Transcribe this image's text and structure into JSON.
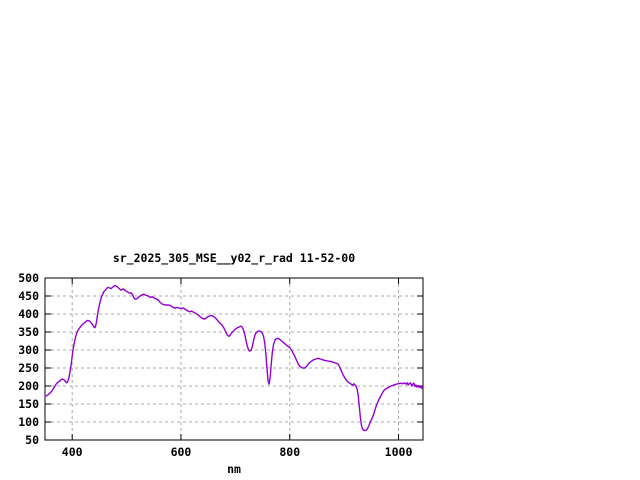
{
  "window": {
    "background": "#ffffff"
  },
  "chart_data": {
    "type": "line",
    "title": "sr_2025_305_MSE__y02_r_rad 11-52-00",
    "xlabel": "nm",
    "ylabel": "",
    "xlim": [
      350,
      1045
    ],
    "ylim": [
      50,
      500
    ],
    "x_ticks": [
      400,
      600,
      800,
      1000
    ],
    "y_ticks": [
      50,
      100,
      150,
      200,
      250,
      300,
      350,
      400,
      450,
      500
    ],
    "grid": true,
    "legend": "none",
    "frame_color": "#000000",
    "grid_color": "#a8a8a8",
    "series": [
      {
        "name": "sr_2025_305_MSE__y02_r_rad",
        "color": "#9400d3",
        "points": [
          [
            350,
            172
          ],
          [
            353,
            173
          ],
          [
            356,
            176
          ],
          [
            359,
            180
          ],
          [
            362,
            185
          ],
          [
            365,
            192
          ],
          [
            368,
            199
          ],
          [
            371,
            206
          ],
          [
            374,
            211
          ],
          [
            377,
            214
          ],
          [
            380,
            218
          ],
          [
            383,
            219
          ],
          [
            386,
            216
          ],
          [
            388,
            211
          ],
          [
            390,
            209
          ],
          [
            392,
            213
          ],
          [
            394,
            222
          ],
          [
            396,
            240
          ],
          [
            398,
            258
          ],
          [
            400,
            283
          ],
          [
            402,
            305
          ],
          [
            404,
            322
          ],
          [
            406,
            335
          ],
          [
            408,
            345
          ],
          [
            410,
            353
          ],
          [
            413,
            360
          ],
          [
            416,
            366
          ],
          [
            419,
            371
          ],
          [
            422,
            375
          ],
          [
            425,
            379
          ],
          [
            428,
            382
          ],
          [
            431,
            381
          ],
          [
            434,
            377
          ],
          [
            437,
            372
          ],
          [
            440,
            364
          ],
          [
            442,
            362
          ],
          [
            444,
            372
          ],
          [
            446,
            392
          ],
          [
            448,
            411
          ],
          [
            450,
            425
          ],
          [
            452,
            438
          ],
          [
            454,
            448
          ],
          [
            456,
            455
          ],
          [
            458,
            461
          ],
          [
            460,
            465
          ],
          [
            462,
            468
          ],
          [
            464,
            472
          ],
          [
            466,
            474
          ],
          [
            468,
            473
          ],
          [
            470,
            471
          ],
          [
            472,
            471
          ],
          [
            474,
            474
          ],
          [
            476,
            476
          ],
          [
            478,
            479
          ],
          [
            480,
            478
          ],
          [
            482,
            477
          ],
          [
            484,
            474
          ],
          [
            486,
            471
          ],
          [
            488,
            468
          ],
          [
            490,
            466
          ],
          [
            492,
            468
          ],
          [
            494,
            470
          ],
          [
            496,
            467
          ],
          [
            498,
            465
          ],
          [
            500,
            463
          ],
          [
            502,
            461
          ],
          [
            504,
            459
          ],
          [
            506,
            458
          ],
          [
            508,
            459
          ],
          [
            510,
            456
          ],
          [
            512,
            450
          ],
          [
            514,
            444
          ],
          [
            516,
            441
          ],
          [
            518,
            442
          ],
          [
            520,
            444
          ],
          [
            523,
            448
          ],
          [
            526,
            451
          ],
          [
            529,
            454
          ],
          [
            532,
            455
          ],
          [
            535,
            452
          ],
          [
            538,
            451
          ],
          [
            541,
            448
          ],
          [
            544,
            446
          ],
          [
            547,
            448
          ],
          [
            550,
            445
          ],
          [
            553,
            443
          ],
          [
            556,
            441
          ],
          [
            559,
            437
          ],
          [
            562,
            432
          ],
          [
            565,
            428
          ],
          [
            568,
            426
          ],
          [
            571,
            425
          ],
          [
            574,
            425
          ],
          [
            577,
            425
          ],
          [
            580,
            424
          ],
          [
            583,
            421
          ],
          [
            586,
            418
          ],
          [
            589,
            416
          ],
          [
            592,
            418
          ],
          [
            595,
            417
          ],
          [
            598,
            416
          ],
          [
            601,
            415
          ],
          [
            604,
            417
          ],
          [
            607,
            414
          ],
          [
            610,
            411
          ],
          [
            613,
            408
          ],
          [
            616,
            406
          ],
          [
            619,
            408
          ],
          [
            622,
            406
          ],
          [
            625,
            403
          ],
          [
            628,
            401
          ],
          [
            631,
            398
          ],
          [
            634,
            394
          ],
          [
            637,
            390
          ],
          [
            640,
            387
          ],
          [
            643,
            386
          ],
          [
            646,
            388
          ],
          [
            649,
            392
          ],
          [
            652,
            394
          ],
          [
            655,
            396
          ],
          [
            658,
            395
          ],
          [
            661,
            392
          ],
          [
            664,
            388
          ],
          [
            667,
            383
          ],
          [
            670,
            377
          ],
          [
            673,
            373
          ],
          [
            676,
            368
          ],
          [
            679,
            361
          ],
          [
            682,
            351
          ],
          [
            685,
            342
          ],
          [
            688,
            338
          ],
          [
            690,
            340
          ],
          [
            692,
            345
          ],
          [
            695,
            350
          ],
          [
            698,
            355
          ],
          [
            701,
            359
          ],
          [
            704,
            362
          ],
          [
            707,
            364
          ],
          [
            710,
            366
          ],
          [
            712,
            365
          ],
          [
            714,
            359
          ],
          [
            716,
            350
          ],
          [
            718,
            339
          ],
          [
            720,
            324
          ],
          [
            722,
            311
          ],
          [
            724,
            301
          ],
          [
            726,
            297
          ],
          [
            728,
            298
          ],
          [
            730,
            303
          ],
          [
            732,
            316
          ],
          [
            734,
            331
          ],
          [
            736,
            341
          ],
          [
            738,
            347
          ],
          [
            740,
            350
          ],
          [
            742,
            352
          ],
          [
            744,
            353
          ],
          [
            746,
            352
          ],
          [
            748,
            350
          ],
          [
            750,
            345
          ],
          [
            752,
            337
          ],
          [
            754,
            320
          ],
          [
            756,
            292
          ],
          [
            758,
            252
          ],
          [
            760,
            215
          ],
          [
            762,
            205
          ],
          [
            764,
            226
          ],
          [
            766,
            263
          ],
          [
            768,
            293
          ],
          [
            770,
            313
          ],
          [
            772,
            324
          ],
          [
            774,
            330
          ],
          [
            776,
            332
          ],
          [
            778,
            332
          ],
          [
            780,
            331
          ],
          [
            782,
            329
          ],
          [
            784,
            327
          ],
          [
            786,
            324
          ],
          [
            788,
            321
          ],
          [
            790,
            319
          ],
          [
            792,
            316
          ],
          [
            794,
            313
          ],
          [
            796,
            311
          ],
          [
            798,
            309
          ],
          [
            800,
            307
          ],
          [
            802,
            303
          ],
          [
            804,
            298
          ],
          [
            806,
            292
          ],
          [
            808,
            287
          ],
          [
            810,
            280
          ],
          [
            812,
            273
          ],
          [
            814,
            266
          ],
          [
            816,
            260
          ],
          [
            818,
            256
          ],
          [
            820,
            253
          ],
          [
            822,
            251
          ],
          [
            824,
            250
          ],
          [
            826,
            250
          ],
          [
            828,
            250
          ],
          [
            830,
            253
          ],
          [
            832,
            257
          ],
          [
            834,
            261
          ],
          [
            836,
            264
          ],
          [
            838,
            267
          ],
          [
            840,
            269
          ],
          [
            842,
            271
          ],
          [
            844,
            273
          ],
          [
            848,
            275
          ],
          [
            852,
            277
          ],
          [
            856,
            275
          ],
          [
            860,
            273
          ],
          [
            864,
            271
          ],
          [
            868,
            270
          ],
          [
            872,
            269
          ],
          [
            876,
            268
          ],
          [
            880,
            266
          ],
          [
            884,
            264
          ],
          [
            888,
            262
          ],
          [
            890,
            258
          ],
          [
            892,
            252
          ],
          [
            894,
            245
          ],
          [
            896,
            238
          ],
          [
            898,
            231
          ],
          [
            900,
            226
          ],
          [
            902,
            221
          ],
          [
            904,
            217
          ],
          [
            906,
            213
          ],
          [
            908,
            210
          ],
          [
            910,
            208
          ],
          [
            912,
            206
          ],
          [
            914,
            204
          ],
          [
            916,
            202
          ],
          [
            918,
            206
          ],
          [
            920,
            203
          ],
          [
            922,
            199
          ],
          [
            924,
            191
          ],
          [
            926,
            171
          ],
          [
            928,
            140
          ],
          [
            930,
            110
          ],
          [
            932,
            90
          ],
          [
            934,
            80
          ],
          [
            936,
            77
          ],
          [
            938,
            76
          ],
          [
            940,
            77
          ],
          [
            942,
            80
          ],
          [
            944,
            85
          ],
          [
            946,
            92
          ],
          [
            948,
            100
          ],
          [
            950,
            106
          ],
          [
            952,
            112
          ],
          [
            954,
            120
          ],
          [
            956,
            130
          ],
          [
            958,
            140
          ],
          [
            960,
            149
          ],
          [
            962,
            156
          ],
          [
            964,
            162
          ],
          [
            966,
            168
          ],
          [
            968,
            174
          ],
          [
            970,
            180
          ],
          [
            972,
            185
          ],
          [
            974,
            189
          ],
          [
            976,
            191
          ],
          [
            978,
            193
          ],
          [
            980,
            195
          ],
          [
            982,
            196
          ],
          [
            984,
            198
          ],
          [
            986,
            200
          ],
          [
            988,
            201
          ],
          [
            990,
            202
          ],
          [
            993,
            204
          ],
          [
            996,
            205
          ],
          [
            999,
            206
          ],
          [
            1002,
            207
          ],
          [
            1005,
            208
          ],
          [
            1008,
            206
          ],
          [
            1011,
            209
          ],
          [
            1014,
            205
          ],
          [
            1016,
            209
          ],
          [
            1018,
            203
          ],
          [
            1020,
            207
          ],
          [
            1022,
            209
          ],
          [
            1024,
            200
          ],
          [
            1026,
            205
          ],
          [
            1028,
            208
          ],
          [
            1030,
            199
          ],
          [
            1032,
            203
          ],
          [
            1034,
            197
          ],
          [
            1036,
            201
          ],
          [
            1038,
            196
          ],
          [
            1040,
            200
          ],
          [
            1042,
            194
          ],
          [
            1044,
            197
          ]
        ]
      }
    ]
  }
}
